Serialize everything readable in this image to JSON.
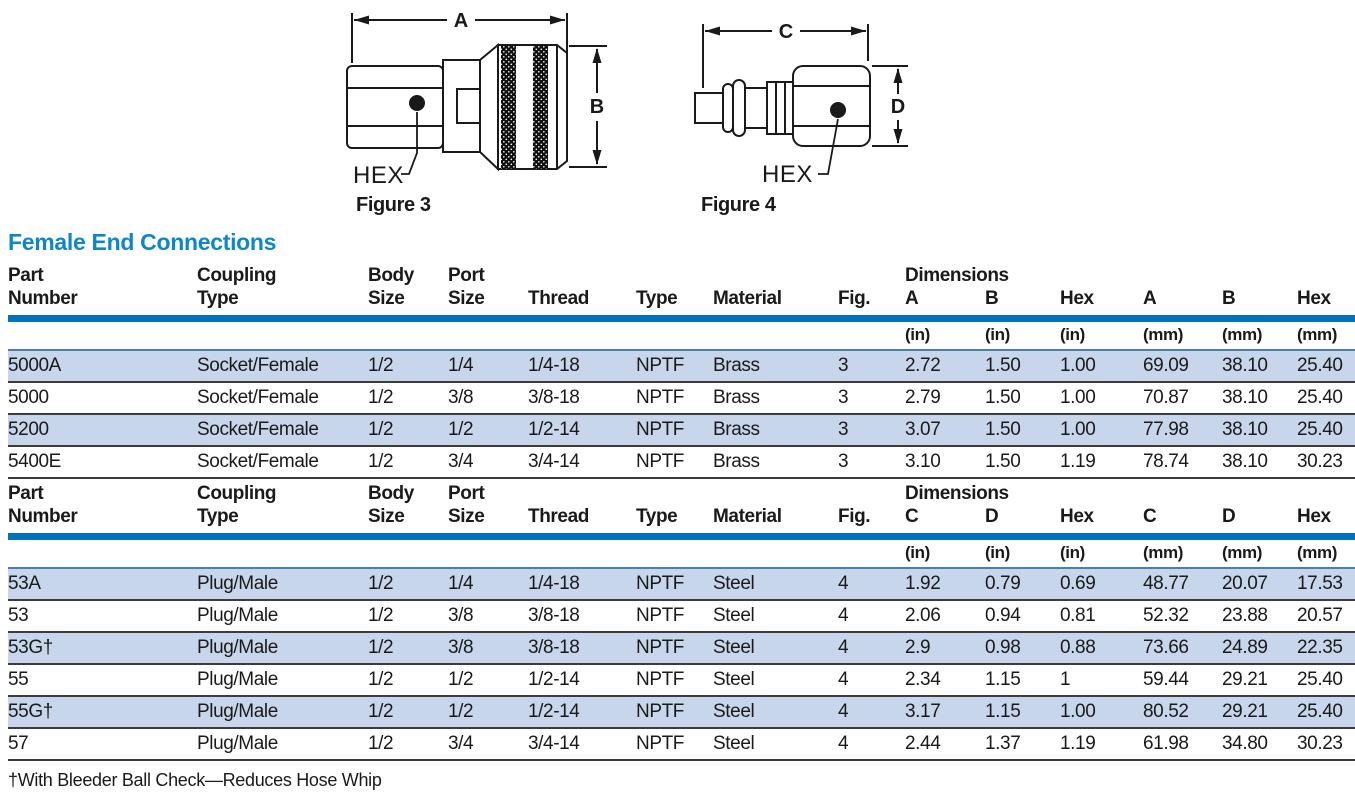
{
  "page": {
    "section_title": "Female End Connections",
    "footnote": "†With Bleeder Ball Check—Reduces Hose Whip"
  },
  "figures": [
    {
      "caption": "Figure 3",
      "hex_label": "HEX",
      "dim_horizontal": "A",
      "dim_vertical": "B"
    },
    {
      "caption": "Figure 4",
      "hex_label": "HEX",
      "dim_horizontal": "C",
      "dim_vertical": "D"
    }
  ],
  "tables": [
    {
      "header_row1": [
        "Part",
        "Coupling",
        "Body",
        "Port",
        "",
        "",
        "",
        "",
        "Dimensions",
        "",
        "",
        "",
        "",
        ""
      ],
      "header_row2": [
        "Number",
        "Type",
        "Size",
        "Size",
        "Thread",
        "Type",
        "Material",
        "Fig.",
        "A",
        "B",
        "Hex",
        "A",
        "B",
        "Hex"
      ],
      "units_row": [
        "",
        "",
        "",
        "",
        "",
        "",
        "",
        "",
        "(in)",
        "(in)",
        "(in)",
        "(mm)",
        "(mm)",
        "(mm)"
      ],
      "rows": [
        [
          "5000A",
          "Socket/Female",
          "1/2",
          "1/4",
          "1/4-18",
          "NPTF",
          "Brass",
          "3",
          "2.72",
          "1.50",
          "1.00",
          "69.09",
          "38.10",
          "25.40"
        ],
        [
          "5000",
          "Socket/Female",
          "1/2",
          "3/8",
          "3/8-18",
          "NPTF",
          "Brass",
          "3",
          "2.79",
          "1.50",
          "1.00",
          "70.87",
          "38.10",
          "25.40"
        ],
        [
          "5200",
          "Socket/Female",
          "1/2",
          "1/2",
          "1/2-14",
          "NPTF",
          "Brass",
          "3",
          "3.07",
          "1.50",
          "1.00",
          "77.98",
          "38.10",
          "25.40"
        ],
        [
          "5400E",
          "Socket/Female",
          "1/2",
          "3/4",
          "3/4-14",
          "NPTF",
          "Brass",
          "3",
          "3.10",
          "1.50",
          "1.19",
          "78.74",
          "38.10",
          "30.23"
        ]
      ]
    },
    {
      "header_row1": [
        "Part",
        "Coupling",
        "Body",
        "Port",
        "",
        "",
        "",
        "",
        "Dimensions",
        "",
        "",
        "",
        "",
        ""
      ],
      "header_row2": [
        "Number",
        "Type",
        "Size",
        "Size",
        "Thread",
        "Type",
        "Material",
        "Fig.",
        "C",
        "D",
        "Hex",
        "C",
        "D",
        "Hex"
      ],
      "units_row": [
        "",
        "",
        "",
        "",
        "",
        "",
        "",
        "",
        "(in)",
        "(in)",
        "(in)",
        "(mm)",
        "(mm)",
        "(mm)"
      ],
      "rows": [
        [
          "53A",
          "Plug/Male",
          "1/2",
          "1/4",
          "1/4-18",
          "NPTF",
          "Steel",
          "4",
          "1.92",
          "0.79",
          "0.69",
          "48.77",
          "20.07",
          "17.53"
        ],
        [
          "53",
          "Plug/Male",
          "1/2",
          "3/8",
          "3/8-18",
          "NPTF",
          "Steel",
          "4",
          "2.06",
          "0.94",
          "0.81",
          "52.32",
          "23.88",
          "20.57"
        ],
        [
          "53G†",
          "Plug/Male",
          "1/2",
          "3/8",
          "3/8-18",
          "NPTF",
          "Steel",
          "4",
          "2.9",
          "0.98",
          "0.88",
          "73.66",
          "24.89",
          "22.35"
        ],
        [
          "55",
          "Plug/Male",
          "1/2",
          "1/2",
          "1/2-14",
          "NPTF",
          "Steel",
          "4",
          "2.34",
          "1.15",
          "1",
          "59.44",
          "29.21",
          "25.40"
        ],
        [
          "55G†",
          "Plug/Male",
          "1/2",
          "1/2",
          "1/2-14",
          "NPTF",
          "Steel",
          "4",
          "3.17",
          "1.15",
          "1.00",
          "80.52",
          "29.21",
          "25.40"
        ],
        [
          "57",
          "Plug/Male",
          "1/2",
          "3/4",
          "3/4-14",
          "NPTF",
          "Steel",
          "4",
          "2.44",
          "1.37",
          "1.19",
          "61.98",
          "34.80",
          "30.23"
        ]
      ]
    }
  ],
  "colors": {
    "heading_blue": "#0E87C9",
    "bar_blue": "#0072BC",
    "row_shade": "#C7D6EB",
    "row_border": "#3C3C3C",
    "units_rule": "#4A7EB5",
    "ink": "#1A1A1A"
  }
}
